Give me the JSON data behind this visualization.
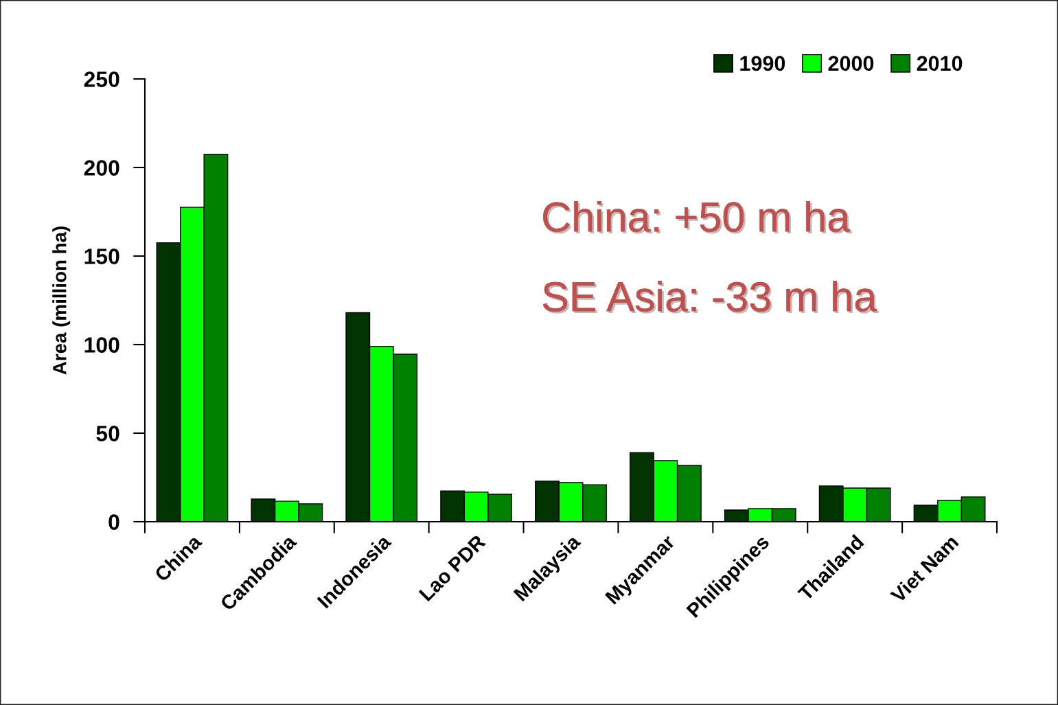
{
  "chart_data": {
    "type": "bar",
    "ylabel": "Area (million ha)",
    "categories": [
      "China",
      "Cambodia",
      "Indonesia",
      "Lao PDR",
      "Malaysia",
      "Myanmar",
      "Philippines",
      "Thailand",
      "Viet Nam"
    ],
    "series": [
      {
        "name": "1990",
        "color": "#003300",
        "values": [
          157.5,
          12.8,
          118,
          17.4,
          22.9,
          39,
          6.6,
          20.2,
          9.3
        ]
      },
      {
        "name": "2000",
        "color": "#00ff00",
        "values": [
          177.5,
          11.6,
          99,
          16.7,
          22.1,
          34.5,
          7.4,
          19,
          12
        ]
      },
      {
        "name": "2010",
        "color": "#008000",
        "values": [
          207.5,
          10.1,
          94.6,
          15.5,
          20.9,
          31.8,
          7.4,
          19,
          14
        ]
      }
    ],
    "ylim": [
      0,
      250
    ],
    "yticks": [
      0,
      50,
      100,
      150,
      200,
      250
    ],
    "grid": false,
    "legend": "top right",
    "annotations": [
      "China: +50 m ha",
      "SE Asia: -33 m ha"
    ]
  }
}
